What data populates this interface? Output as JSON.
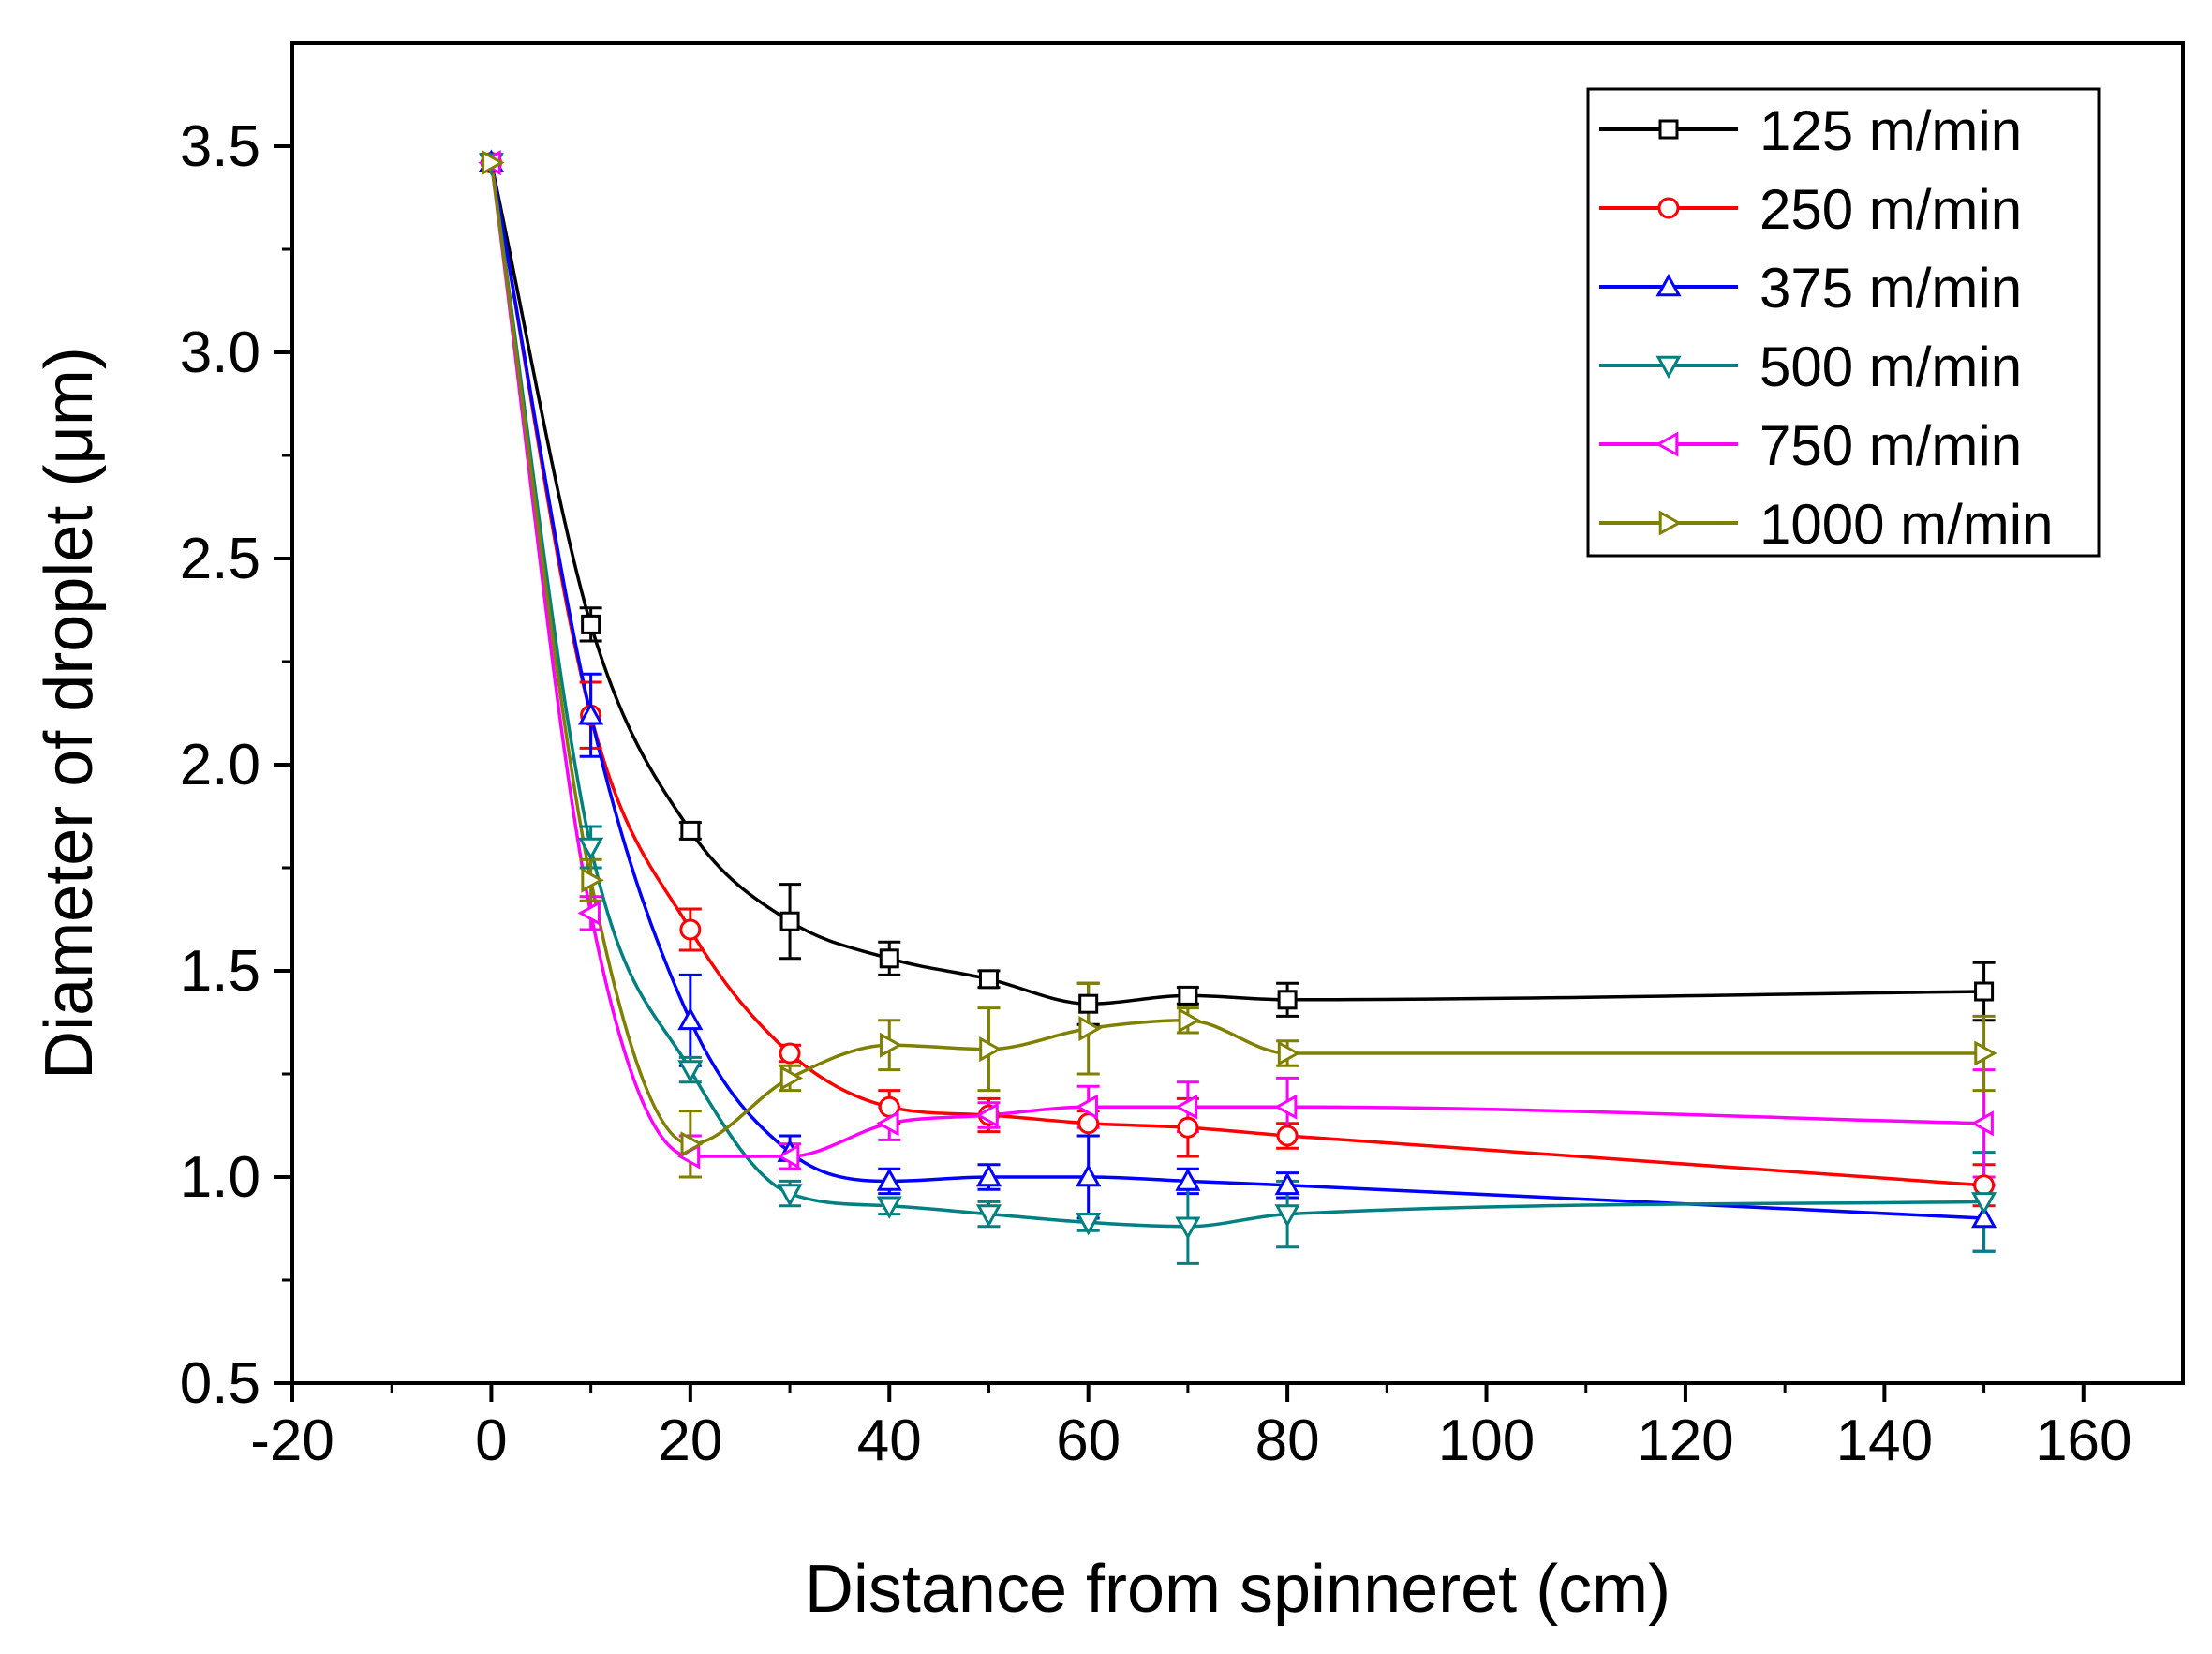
{
  "chart_data": {
    "type": "line",
    "title": "",
    "xlabel": "Distance from spinneret (cm)",
    "ylabel": "Diameter of droplet (μm)",
    "xlim": [
      -20,
      170
    ],
    "ylim": [
      0.5,
      3.75
    ],
    "xticks": [
      -20,
      0,
      20,
      40,
      60,
      80,
      100,
      120,
      140,
      160
    ],
    "xtick_labels": [
      "-20",
      "0",
      "20",
      "40",
      "60",
      "80",
      "100",
      "120",
      "140",
      "160"
    ],
    "yticks": [
      0.5,
      1.0,
      1.5,
      2.0,
      2.5,
      3.0,
      3.5
    ],
    "ytick_labels": [
      "0.5",
      "1.0",
      "1.5",
      "2.0",
      "2.5",
      "3.0",
      "3.5"
    ],
    "grid": false,
    "legend_position": "top-right",
    "x": [
      0,
      10,
      20,
      30,
      40,
      50,
      60,
      70,
      80,
      150
    ],
    "series": [
      {
        "name": "125 m/min",
        "color": "#000000",
        "marker": "square",
        "values": [
          3.46,
          2.34,
          1.84,
          1.62,
          1.53,
          1.48,
          1.42,
          1.44,
          1.43,
          1.45
        ],
        "errors": [
          0.02,
          0.04,
          0.02,
          0.09,
          0.04,
          0.02,
          0.05,
          0.02,
          0.04,
          0.07
        ]
      },
      {
        "name": "250 m/min",
        "color": "#ff0000",
        "marker": "circle",
        "values": [
          3.46,
          2.12,
          1.6,
          1.3,
          1.17,
          1.15,
          1.13,
          1.12,
          1.1,
          0.98
        ],
        "errors": [
          0.02,
          0.08,
          0.05,
          0.02,
          0.04,
          0.04,
          0.03,
          0.07,
          0.03,
          0.05
        ]
      },
      {
        "name": "375 m/min",
        "color": "#0000ff",
        "marker": "triangle-up",
        "values": [
          3.46,
          2.12,
          1.38,
          1.06,
          0.99,
          1.0,
          1.0,
          0.99,
          0.98,
          0.9
        ],
        "errors": [
          0.02,
          0.1,
          0.11,
          0.04,
          0.03,
          0.03,
          0.1,
          0.03,
          0.03,
          0.08
        ]
      },
      {
        "name": "500 m/min",
        "color": "#008080",
        "marker": "triangle-down",
        "values": [
          3.46,
          1.8,
          1.26,
          0.96,
          0.93,
          0.91,
          0.89,
          0.88,
          0.91,
          0.94
        ],
        "errors": [
          0.02,
          0.05,
          0.03,
          0.03,
          0.02,
          0.03,
          0.02,
          0.09,
          0.08,
          0.12
        ]
      },
      {
        "name": "750 m/min",
        "color": "#ff00ff",
        "marker": "triangle-left",
        "values": [
          3.46,
          1.64,
          1.05,
          1.05,
          1.13,
          1.15,
          1.17,
          1.17,
          1.17,
          1.13
        ],
        "errors": [
          0.02,
          0.04,
          0.05,
          0.03,
          0.04,
          0.03,
          0.05,
          0.06,
          0.07,
          0.13
        ]
      },
      {
        "name": "1000 m/min",
        "color": "#808000",
        "marker": "triangle-right",
        "values": [
          3.46,
          1.72,
          1.08,
          1.24,
          1.32,
          1.31,
          1.36,
          1.38,
          1.3,
          1.3
        ],
        "errors": [
          0.02,
          0.05,
          0.08,
          0.03,
          0.06,
          0.1,
          0.11,
          0.03,
          0.03,
          0.09
        ]
      }
    ]
  }
}
